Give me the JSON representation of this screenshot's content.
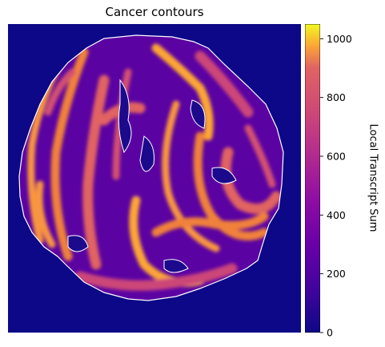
{
  "chart_data": {
    "type": "heatmap",
    "title": "Cancer contours",
    "colormap": "plasma",
    "colorbar": {
      "label": "Local Transcript Sum",
      "min": 0,
      "max": 1050,
      "ticks": [
        0,
        200,
        400,
        600,
        800,
        1000
      ],
      "tick_labels": [
        "0",
        "200",
        "400",
        "600",
        "800",
        "1000"
      ]
    },
    "background_value": 0,
    "contour_color": "#ffffff",
    "axes_visible": false
  }
}
